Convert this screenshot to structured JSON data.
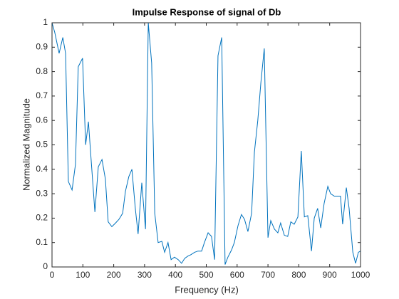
{
  "chart_data": {
    "type": "line",
    "title": "Impulse Response of signal of Db",
    "x_label": "Frequency (Hz)",
    "y_label": "Normalized Magnitude",
    "x": [
      0,
      9,
      23,
      35,
      44,
      53,
      65,
      76,
      85,
      99,
      109,
      118,
      129,
      139,
      150,
      162,
      173,
      182,
      194,
      206,
      217,
      229,
      238,
      249,
      259,
      270,
      279,
      291,
      303,
      312,
      323,
      333,
      344,
      356,
      365,
      376,
      386,
      397,
      409,
      420,
      430,
      441,
      450,
      462,
      473,
      485,
      494,
      506,
      517,
      527,
      538,
      550,
      561,
      570,
      582,
      591,
      603,
      614,
      624,
      635,
      647,
      656,
      667,
      677,
      688,
      700,
      709,
      721,
      732,
      741,
      753,
      764,
      774,
      785,
      797,
      808,
      818,
      829,
      841,
      850,
      861,
      871,
      882,
      894,
      903,
      915,
      926,
      935,
      942,
      954,
      963,
      975,
      984,
      993,
      1000
    ],
    "series": [
      {
        "name": "Impulse Response",
        "color": "#0072bd",
        "values": [
          1.0,
          0.96,
          0.875,
          0.94,
          0.875,
          0.35,
          0.315,
          0.42,
          0.82,
          0.855,
          0.5,
          0.595,
          0.4,
          0.225,
          0.41,
          0.44,
          0.36,
          0.185,
          0.165,
          0.18,
          0.195,
          0.22,
          0.31,
          0.37,
          0.4,
          0.24,
          0.135,
          0.345,
          0.155,
          1.0,
          0.835,
          0.22,
          0.1,
          0.105,
          0.06,
          0.1,
          0.03,
          0.04,
          0.03,
          0.015,
          0.035,
          0.045,
          0.05,
          0.06,
          0.065,
          0.065,
          0.1,
          0.14,
          0.125,
          0.03,
          0.865,
          0.94,
          0.01,
          0.04,
          0.07,
          0.1,
          0.17,
          0.215,
          0.195,
          0.145,
          0.22,
          0.47,
          0.6,
          0.755,
          0.895,
          0.12,
          0.19,
          0.155,
          0.14,
          0.18,
          0.13,
          0.125,
          0.185,
          0.175,
          0.205,
          0.475,
          0.205,
          0.21,
          0.065,
          0.2,
          0.24,
          0.16,
          0.26,
          0.33,
          0.3,
          0.29,
          0.29,
          0.29,
          0.175,
          0.325,
          0.24,
          0.06,
          0.015,
          0.06,
          0.065
        ]
      }
    ],
    "xlim": [
      0,
      1000
    ],
    "xticks": [
      0,
      100,
      200,
      300,
      400,
      500,
      600,
      700,
      800,
      900,
      1000
    ],
    "ylim": [
      0,
      1
    ],
    "yticks": [
      0,
      0.1,
      0.2,
      0.3,
      0.4,
      0.5,
      0.6,
      0.7,
      0.8,
      0.9,
      1
    ],
    "grid": false
  }
}
